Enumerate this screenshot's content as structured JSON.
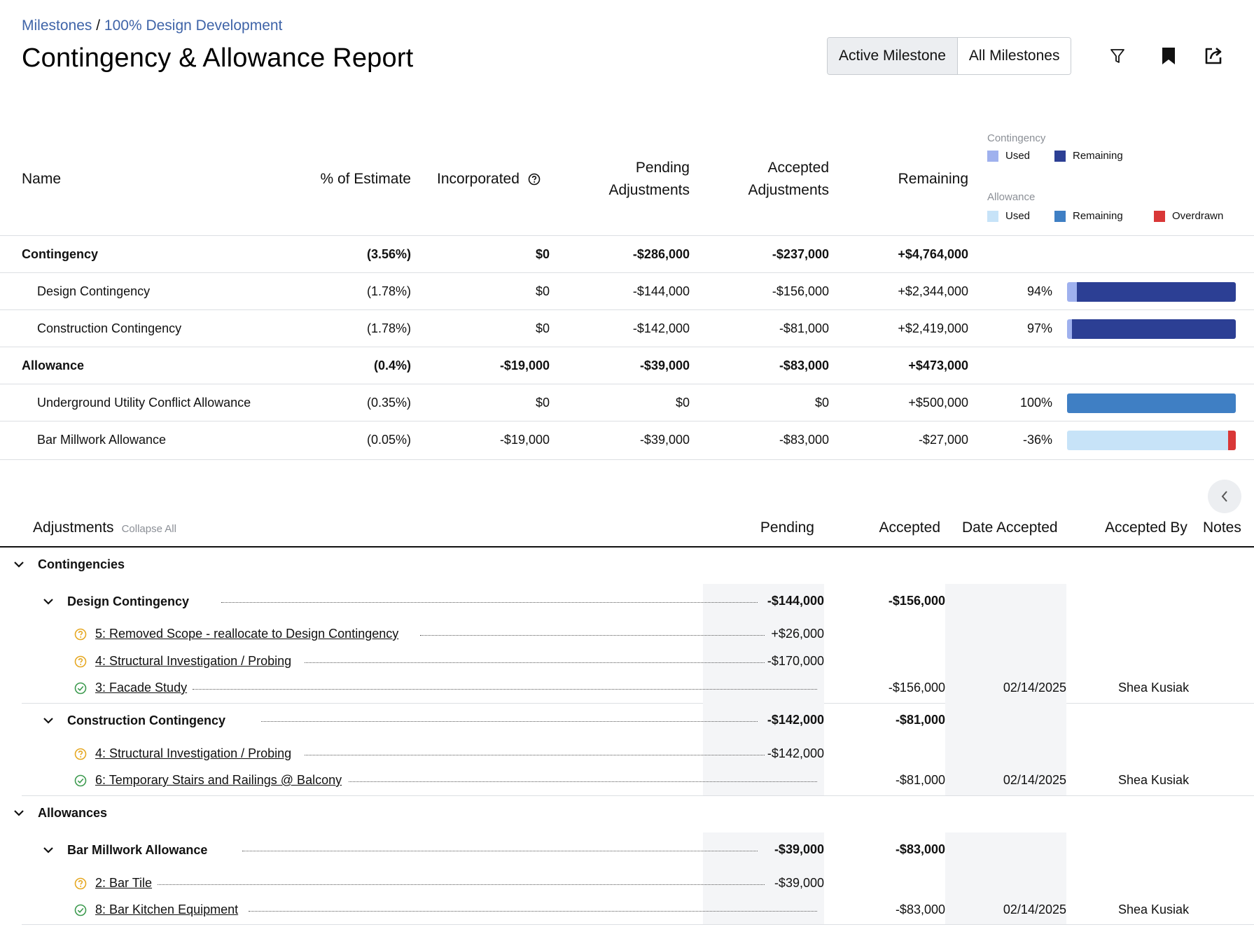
{
  "breadcrumb": {
    "root": "Milestones",
    "separator": " / ",
    "current": "100% Design Development"
  },
  "title": "Contingency & Allowance Report",
  "view_toggle": {
    "active": "Active Milestone",
    "other": "All Milestones"
  },
  "toolbar": {
    "filter_icon": "filter-icon",
    "bookmark_icon": "bookmark-icon",
    "export_icon": "export-icon"
  },
  "summary": {
    "headers": {
      "name": "Name",
      "pct": "% of Estimate",
      "incorporated": "Incorporated",
      "pending_1": "Pending",
      "pending_2": "Adjustments",
      "accepted_1": "Accepted",
      "accepted_2": "Adjustments",
      "remaining": "Remaining"
    },
    "legend": {
      "contingency_title": "Contingency",
      "allowance_title": "Allowance",
      "used": "Used",
      "remaining": "Remaining",
      "overdrawn": "Overdrawn",
      "colors": {
        "contingency_used": "#9fb1ee",
        "contingency_remaining": "#2c3f94",
        "allowance_used": "#c7e3f8",
        "allowance_remaining": "#3f7fc4",
        "overdrawn": "#d93737"
      }
    },
    "rows": [
      {
        "name": "Contingency",
        "pct": "(3.56%)",
        "incorporated": "$0",
        "pending": "-$286,000",
        "accepted": "-$237,000",
        "remaining": "+$4,764,000",
        "group": true
      },
      {
        "name": "Design Contingency",
        "pct": "(1.78%)",
        "incorporated": "$0",
        "pending": "-$144,000",
        "accepted": "-$156,000",
        "remaining": "+$2,344,000",
        "remaining_pct": "94%",
        "bar": {
          "kind": "contingency",
          "used": 0.06,
          "remaining": 0.94,
          "overdrawn": 0
        }
      },
      {
        "name": "Construction Contingency",
        "pct": "(1.78%)",
        "incorporated": "$0",
        "pending": "-$142,000",
        "accepted": "-$81,000",
        "remaining": "+$2,419,000",
        "remaining_pct": "97%",
        "bar": {
          "kind": "contingency",
          "used": 0.03,
          "remaining": 0.97,
          "overdrawn": 0
        }
      },
      {
        "name": "Allowance",
        "pct": "(0.4%)",
        "incorporated": "-$19,000",
        "pending": "-$39,000",
        "accepted": "-$83,000",
        "remaining": "+$473,000",
        "group": true
      },
      {
        "name": "Underground Utility Conflict Allowance",
        "pct": "(0.35%)",
        "incorporated": "$0",
        "pending": "$0",
        "accepted": "$0",
        "remaining": "+$500,000",
        "remaining_pct": "100%",
        "bar": {
          "kind": "allowance",
          "used": 0,
          "remaining": 1.0,
          "overdrawn": 0
        }
      },
      {
        "name": "Bar Millwork Allowance",
        "pct": "(0.05%)",
        "incorporated": "-$19,000",
        "pending": "-$39,000",
        "accepted": "-$83,000",
        "remaining": "-$27,000",
        "remaining_pct": "-36%",
        "bar": {
          "kind": "allowance",
          "used": 1.0,
          "remaining": 0,
          "overdrawn": 0.05
        }
      }
    ]
  },
  "adjustments": {
    "title": "Adjustments",
    "collapse_all": "Collapse All",
    "headers": {
      "pending": "Pending",
      "accepted": "Accepted",
      "date_accepted": "Date Accepted",
      "accepted_by": "Accepted By",
      "notes": "Notes"
    },
    "sections": {
      "contingencies": "Contingencies",
      "allowances": "Allowances"
    },
    "groups": [
      {
        "name": "Design Contingency",
        "pending": "-$144,000",
        "accepted": "-$156,000",
        "items": [
          {
            "label": "5: Removed Scope - reallocate to Design Contingency",
            "status": "pending",
            "pending": "+$26,000"
          },
          {
            "label": "4: Structural Investigation / Probing",
            "status": "pending",
            "pending": "-$170,000"
          },
          {
            "label": "3: Facade Study",
            "status": "accepted",
            "accepted": "-$156,000",
            "date": "02/14/2025",
            "by": "Shea Kusiak"
          }
        ]
      },
      {
        "name": "Construction Contingency",
        "pending": "-$142,000",
        "accepted": "-$81,000",
        "items": [
          {
            "label": "4: Structural Investigation / Probing",
            "status": "pending",
            "pending": "-$142,000"
          },
          {
            "label": "6: Temporary Stairs and Railings @ Balcony",
            "status": "accepted",
            "accepted": "-$81,000",
            "date": "02/14/2025",
            "by": "Shea Kusiak"
          }
        ]
      },
      {
        "name": "Bar Millwork Allowance",
        "pending": "-$39,000",
        "accepted": "-$83,000",
        "items": [
          {
            "label": "2: Bar Tile",
            "status": "pending",
            "pending": "-$39,000"
          },
          {
            "label": "8: Bar Kitchen Equipment",
            "status": "accepted",
            "accepted": "-$83,000",
            "date": "02/14/2025",
            "by": "Shea Kusiak"
          }
        ]
      }
    ]
  }
}
